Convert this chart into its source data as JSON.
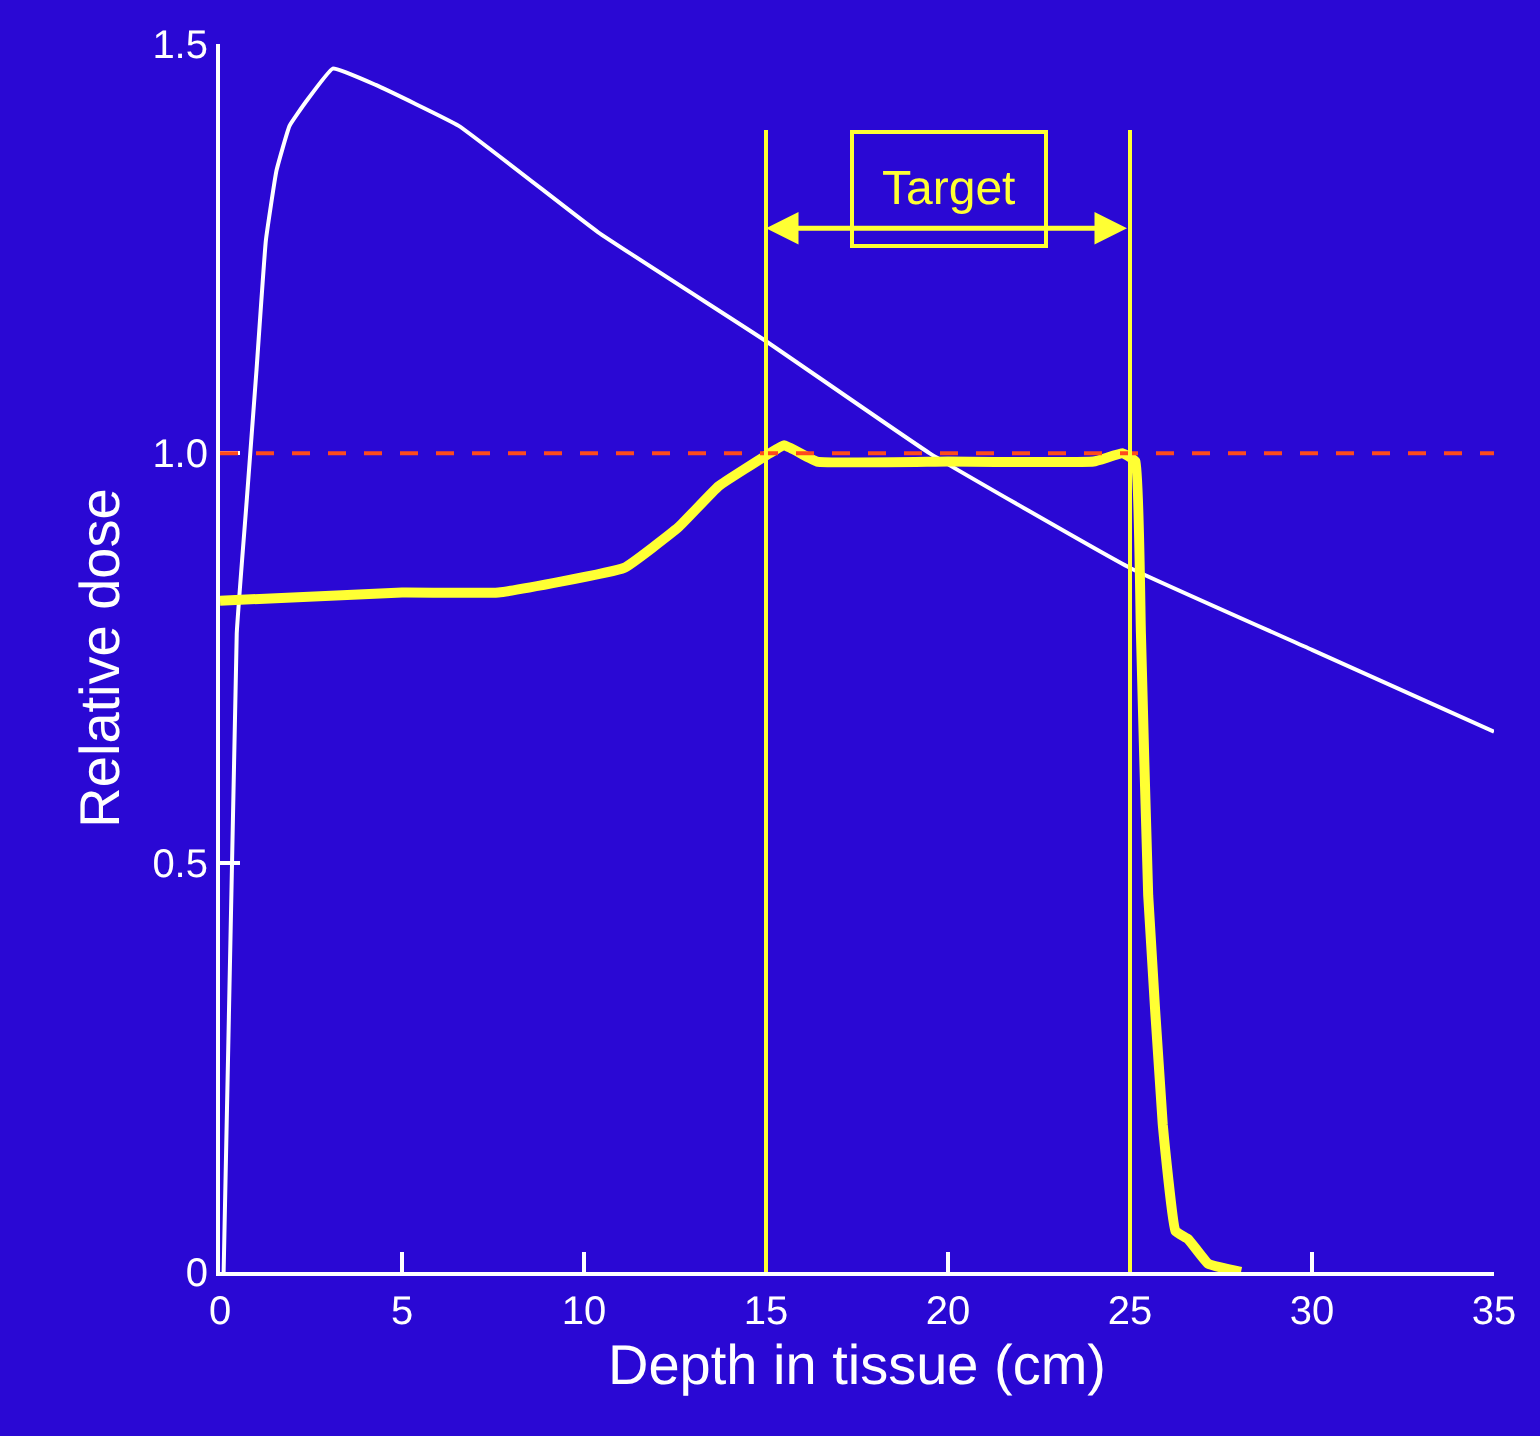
{
  "chart_data": {
    "type": "line",
    "xlabel": "Depth in tissue (cm)",
    "ylabel": "Relative dose",
    "xlim": [
      0,
      35
    ],
    "xticks": [
      0,
      5,
      10,
      15,
      20,
      25,
      30,
      35
    ],
    "ylim": [
      0,
      1.5
    ],
    "yticks": [
      0,
      {
        "value": 0.5,
        "label": "0.5"
      },
      {
        "value": 1,
        "label": "1.0"
      },
      1.5
    ],
    "grid": false,
    "marker": "none",
    "line_style": "solid",
    "series": [
      {
        "color": "#ffffff",
        "x": [
          0.1,
          0.46,
          0.73,
          1.0,
          1.26,
          1.55,
          1.91,
          2.37,
          3.1,
          4.28,
          6.56,
          10.39,
          14.9,
          19.5,
          25,
          30,
          35
        ],
        "values": [
          0,
          0.78,
          0.94,
          1.1,
          1.26,
          1.345,
          1.4,
          1.43,
          1.47,
          1.45,
          1.4,
          1.27,
          1.14,
          1.0,
          0.86,
          0.76,
          0.66
        ]
      },
      {
        "color": "#ffff33",
        "x": [
          0,
          5,
          7.65,
          11.1,
          12.6,
          13.7,
          15.1,
          15.5,
          16.4,
          20,
          24,
          24.8,
          25.15,
          25.3,
          25.5,
          25.9,
          26.25,
          26.6,
          27.15,
          28.05
        ],
        "values": [
          0.82,
          0.83,
          0.83,
          0.86,
          0.91,
          0.96,
          1.0,
          1.01,
          0.99,
          0.99,
          0.99,
          1.0,
          0.99,
          0.78,
          0.46,
          0.18,
          0.05,
          0.04,
          0.01,
          0
        ]
      }
    ],
    "ref_lines": [
      {
        "axis": "y",
        "value": 1,
        "color": "#ff4a1c",
        "line_style": "dashed"
      },
      {
        "axis": "x",
        "value": 15,
        "color": "#ffff33"
      },
      {
        "axis": "x",
        "value": 25,
        "color": "#ffff33"
      }
    ],
    "annotations": [
      "Target"
    ]
  }
}
